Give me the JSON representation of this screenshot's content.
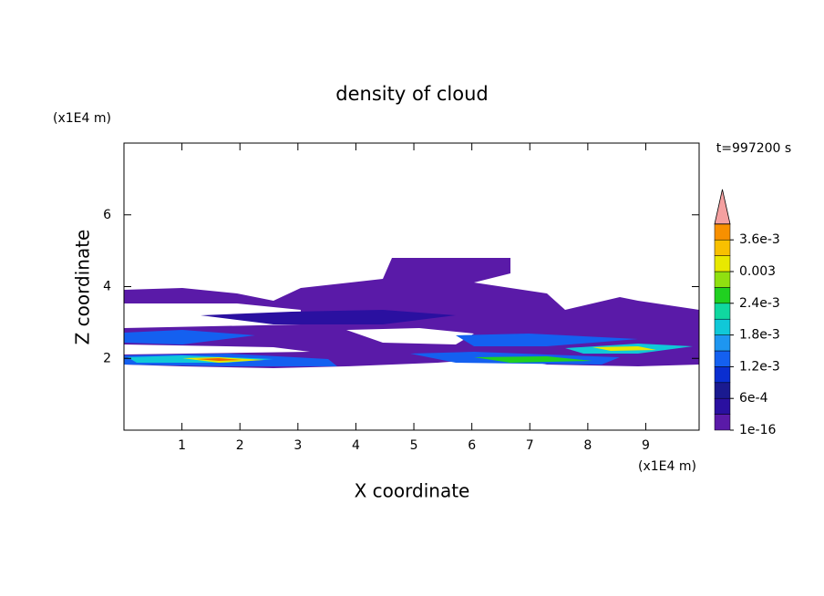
{
  "chart_data": {
    "type": "contour",
    "title": "density of cloud",
    "x_label": "X coordinate",
    "y_label": "Z coordinate",
    "x_unit": "(x1E4 m)",
    "y_unit": "(x1E4 m)",
    "time_label": "t=997200 s",
    "xlim": [
      0,
      9.92
    ],
    "ylim": [
      0,
      8
    ],
    "xticks": [
      1,
      2,
      3,
      4,
      5,
      6,
      7,
      8,
      9
    ],
    "yticks": [
      2,
      4,
      6
    ],
    "colorbar": {
      "levels": [
        1e-16,
        0.0003,
        0.0006,
        0.0009,
        0.0012,
        0.0015,
        0.0018,
        0.0021,
        0.0024,
        0.0027,
        0.003,
        0.0033,
        0.0036,
        0.0039
      ],
      "colors": [
        "#5a1aa8",
        "#2a10a0",
        "#1a1a90",
        "#0a2ed0",
        "#1460f0",
        "#1e96f0",
        "#10c8d8",
        "#10d8a0",
        "#20d020",
        "#90e010",
        "#e8e800",
        "#f8c000",
        "#f89000",
        "#f06000",
        "#f02000"
      ],
      "extend_color": "#f4a0a0",
      "ticks": [
        {
          "value": 1e-16,
          "label": "1e-16"
        },
        {
          "value": 0.0006,
          "label": "6e-4"
        },
        {
          "value": 0.0012,
          "label": "1.2e-3"
        },
        {
          "value": 0.0018,
          "label": "1.8e-3"
        },
        {
          "value": 0.0024,
          "label": "2.4e-3"
        },
        0.003,
        {
          "value": 0.0036,
          "label": "3.6e-3"
        }
      ]
    }
  }
}
